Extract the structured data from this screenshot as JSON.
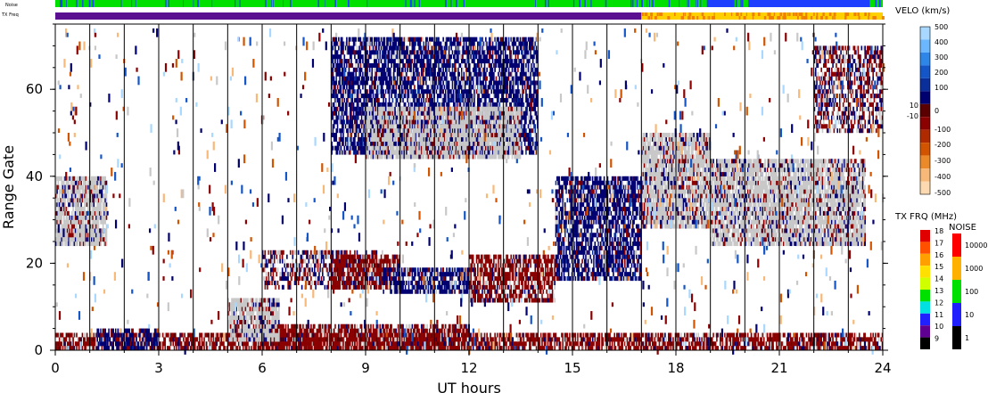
{
  "chart_data": {
    "type": "heatmap",
    "xlabel": "UT hours",
    "ylabel": "Range Gate",
    "xlim": [
      0,
      24
    ],
    "ylim": [
      0,
      75
    ],
    "x_ticks": [
      "0",
      "3",
      "6",
      "9",
      "12",
      "15",
      "18",
      "21",
      "24"
    ],
    "y_ticks": [
      "0",
      "20",
      "40",
      "60"
    ],
    "grid": "vertical lines every hour",
    "top_strips": {
      "noise_label": "Noise",
      "txfreq_label": "TX Freq"
    },
    "velocity_scale": {
      "title": "VELO (km/s)",
      "ticks": [
        "500",
        "400",
        "300",
        "200",
        "100",
        "10",
        "0",
        "-10",
        "-100",
        "-200",
        "-300",
        "-400",
        "-500"
      ],
      "colors_top_to_bottom": [
        "#a8d8ff",
        "#6cb8ff",
        "#2e86e8",
        "#1456c8",
        "#0b2f9a",
        "#000070",
        "#5a0000",
        "#8b0000",
        "#b02a00",
        "#d25400",
        "#ec8a2a",
        "#f8b878",
        "#fcd9b0"
      ],
      "ground_scatter_color": "#c8c8c8"
    },
    "txfreq_scale": {
      "title": "TX FRQ (MHz)",
      "ticks": [
        "18",
        "17",
        "16",
        "15",
        "14",
        "13",
        "12",
        "11",
        "10",
        "9"
      ],
      "colors_top_to_bottom": [
        "#e00000",
        "#ff5000",
        "#ffa000",
        "#ffe000",
        "#d0ff00",
        "#00e000",
        "#00e0e0",
        "#2020ff",
        "#600090",
        "#000000"
      ]
    },
    "noise_scale": {
      "title": "NOISE",
      "ticks": [
        "10000",
        "1000",
        "100",
        "10",
        "1"
      ],
      "colors_top_to_bottom": [
        "#ff0000",
        "#ffb000",
        "#00e000",
        "#2020ff",
        "#000000"
      ]
    },
    "regions": [
      {
        "x": [
          0.0,
          24.0
        ],
        "y": [
          0,
          4
        ],
        "value": "negative",
        "note": "near-range band"
      },
      {
        "x": [
          1.2,
          3.0
        ],
        "y": [
          0,
          5
        ],
        "value": "positive"
      },
      {
        "x": [
          5.8,
          12.0
        ],
        "y": [
          0,
          6
        ],
        "value": "negative"
      },
      {
        "x": [
          5.0,
          6.5
        ],
        "y": [
          2,
          12
        ],
        "value": "ground"
      },
      {
        "x": [
          6.0,
          9.5
        ],
        "y": [
          14,
          23
        ],
        "value": "mixed"
      },
      {
        "x": [
          8.0,
          10.0
        ],
        "y": [
          14,
          22
        ],
        "value": "negative"
      },
      {
        "x": [
          9.5,
          12.0
        ],
        "y": [
          13,
          19
        ],
        "value": "positive"
      },
      {
        "x": [
          12.0,
          14.5
        ],
        "y": [
          11,
          22
        ],
        "value": "negative"
      },
      {
        "x": [
          14.5,
          17.0
        ],
        "y": [
          16,
          40
        ],
        "value": "positive"
      },
      {
        "x": [
          17.0,
          19.0
        ],
        "y": [
          28,
          50
        ],
        "value": "ground"
      },
      {
        "x": [
          19.0,
          23.5
        ],
        "y": [
          24,
          44
        ],
        "value": "ground"
      },
      {
        "x": [
          0.0,
          1.5
        ],
        "y": [
          24,
          40
        ],
        "value": "ground"
      },
      {
        "x": [
          8.0,
          14.0
        ],
        "y": [
          45,
          72
        ],
        "value": "positive"
      },
      {
        "x": [
          9.0,
          13.5
        ],
        "y": [
          44,
          56
        ],
        "value": "ground"
      },
      {
        "x": [
          22.0,
          24.0
        ],
        "y": [
          50,
          70
        ],
        "value": "mixed"
      }
    ]
  }
}
